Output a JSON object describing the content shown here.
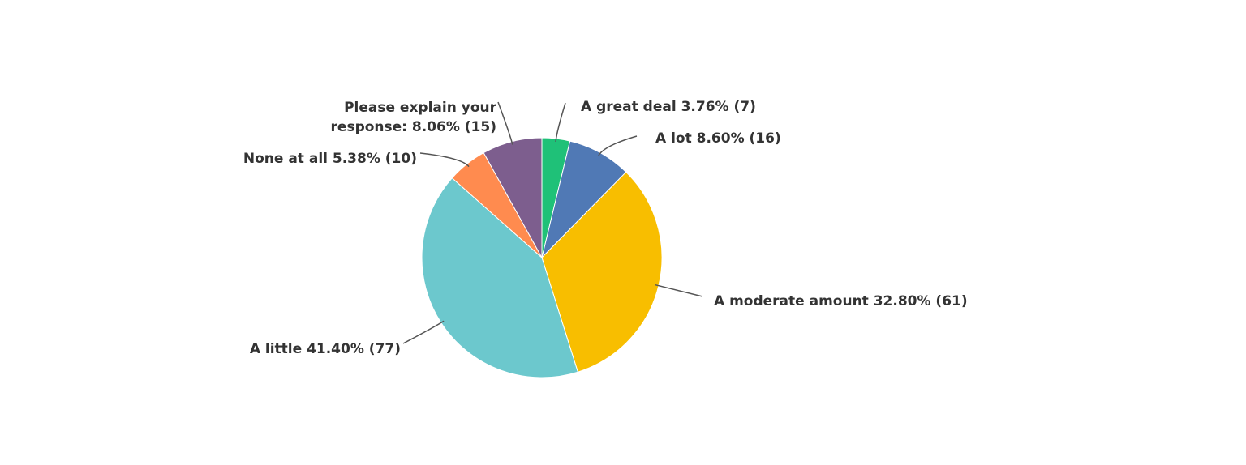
{
  "chart_data": {
    "type": "pie",
    "slices": [
      {
        "label": "A great deal",
        "percent": "3.76%",
        "count": "(7)",
        "value": 3.76,
        "color": "#1fc178"
      },
      {
        "label": "A lot",
        "percent": "8.60%",
        "count": "(16)",
        "value": 8.6,
        "color": "#5079b5"
      },
      {
        "label": "A moderate amount",
        "percent": "32.80%",
        "count": "(61)",
        "value": 32.8,
        "color": "#f8be00"
      },
      {
        "label": "A little",
        "percent": "41.40%",
        "count": "(77)",
        "value": 41.4,
        "color": "#6cc8cd"
      },
      {
        "label": "None at all",
        "percent": "5.38%",
        "count": "(10)",
        "value": 5.38,
        "color": "#ff8b4f"
      },
      {
        "label": "Please explain your response:",
        "percent": "8.06%",
        "count": "(15)",
        "value": 8.06,
        "color": "#7d5e8e"
      }
    ]
  }
}
